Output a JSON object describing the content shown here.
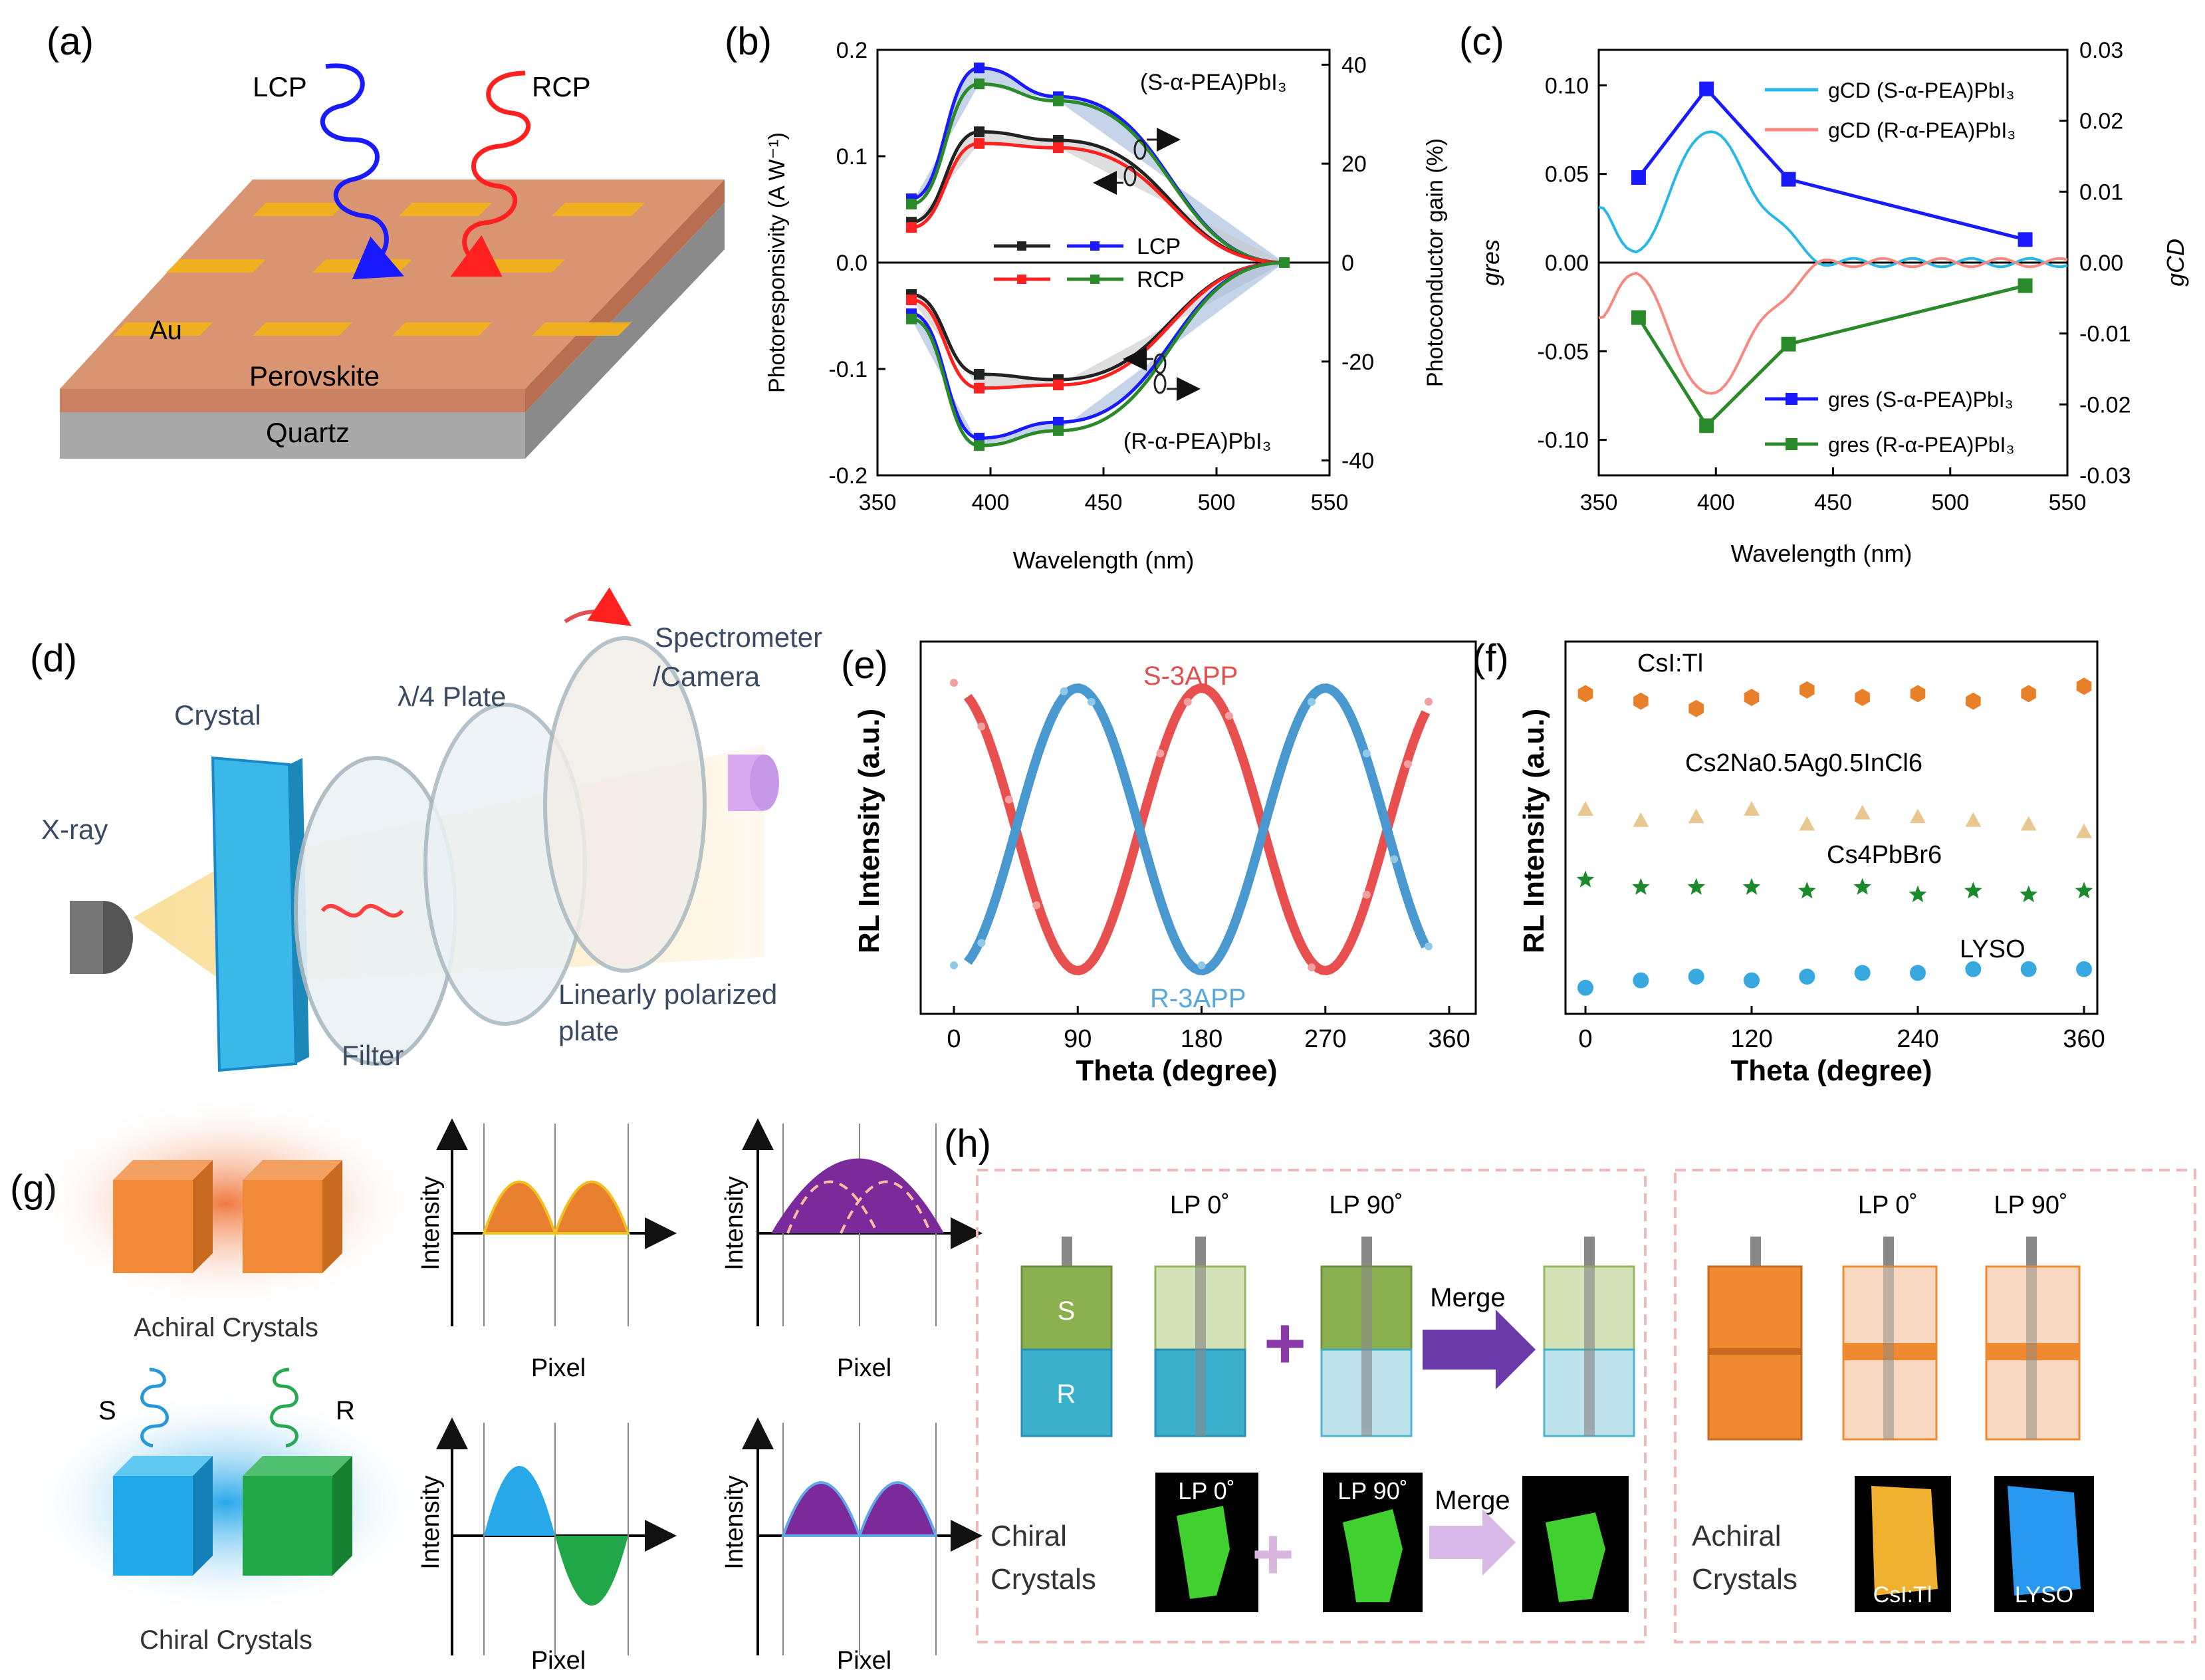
{
  "panel_labels": {
    "a": "(a)",
    "b": "(b)",
    "c": "(c)",
    "d": "(d)",
    "e": "(e)",
    "f": "(f)",
    "g": "(g)",
    "h": "(h)"
  },
  "panel_a": {
    "lcp": "LCP",
    "rcp": "RCP",
    "au": "Au",
    "perovskite": "Perovskite",
    "quartz": "Quartz"
  },
  "panel_d": {
    "xray": "X-ray",
    "crystal": "Crystal",
    "plate": "λ/4 Plate",
    "spectrometer": "Spectrometer",
    "camera": "/Camera",
    "filter": "Filter",
    "lp1": "Linearly polarized",
    "lp2": "plate"
  },
  "panel_g": {
    "achiral": "Achiral Crystals",
    "chiral": "Chiral Crystals",
    "s": "S",
    "r": "R",
    "intensity": "Intensity",
    "pixel": "Pixel"
  },
  "panel_h": {
    "s": "S",
    "r": "R",
    "lp0": "LP 0˚",
    "lp90": "LP 90˚",
    "merge": "Merge",
    "chiral1": "Chiral",
    "chiral2": "Crystals",
    "achiral1": "Achiral",
    "achiral2": "Crystals",
    "csi": "CsI:Tl",
    "lyso": "LYSO"
  },
  "colors": {
    "blue": "#1a1aff",
    "red": "#ff2020",
    "black": "#222222",
    "green": "#2a8a2a",
    "orange": "#e8802a",
    "teal": "#3aa8c8",
    "purple": "#7a2a9a"
  },
  "chart_data": [
    {
      "id": "b",
      "type": "line",
      "xlabel": "Wavelength (nm)",
      "ylabel": "Photoresponsivity (A W⁻¹)",
      "y2label": "Photoconductor gain (%)",
      "xlim": [
        350,
        550
      ],
      "ylim": [
        -0.2,
        0.2
      ],
      "y2lim": [
        -43,
        43
      ],
      "xticks": [
        "350",
        "400",
        "450",
        "500",
        "550"
      ],
      "yticks": [
        "0.2",
        "0.1",
        "0.0",
        "-0.1",
        "-0.2"
      ],
      "y2ticks": [
        "40",
        "20",
        "0",
        "-20",
        "-40"
      ],
      "annotation_top": "(S-α-PEA)PbI₃",
      "annotation_bottom": "(R-α-PEA)PbI₃",
      "legend": [
        "LCP",
        "RCP"
      ],
      "x": [
        365,
        395,
        430,
        530
      ],
      "series": [
        {
          "name": "S LCP",
          "values": [
            0.06,
            0.183,
            0.156,
            0.0
          ]
        },
        {
          "name": "S RCP",
          "values": [
            0.055,
            0.168,
            0.152,
            0.0
          ]
        },
        {
          "name": "S LCP black",
          "values": [
            0.038,
            0.123,
            0.115,
            0.0
          ]
        },
        {
          "name": "S RCP red",
          "values": [
            0.033,
            0.112,
            0.108,
            0.0
          ]
        },
        {
          "name": "R LCP black",
          "values": [
            -0.03,
            -0.105,
            -0.11,
            0.0
          ]
        },
        {
          "name": "R RCP red",
          "values": [
            -0.035,
            -0.118,
            -0.115,
            0.0
          ]
        },
        {
          "name": "R LCP blue",
          "values": [
            -0.048,
            -0.165,
            -0.15,
            0.0
          ]
        },
        {
          "name": "R RCP green",
          "values": [
            -0.053,
            -0.172,
            -0.158,
            0.0
          ]
        }
      ]
    },
    {
      "id": "c",
      "type": "line",
      "xlabel": "Wavelength (nm)",
      "ylabel": "gres",
      "y2label": "gCD",
      "xlim": [
        350,
        550
      ],
      "ylim": [
        -0.12,
        0.12
      ],
      "y2lim": [
        -0.03,
        0.03
      ],
      "xticks": [
        "350",
        "400",
        "450",
        "500",
        "550"
      ],
      "yticks": [
        "0.10",
        "0.05",
        "0.00",
        "-0.05",
        "-0.10"
      ],
      "y2ticks": [
        "0.03",
        "0.02",
        "0.01",
        "0.00",
        "-0.01",
        "-0.02",
        "-0.03"
      ],
      "legend_top": [
        "gCD (S-α-PEA)PbI₃",
        "gCD (R-α-PEA)PbI₃"
      ],
      "legend_bottom": [
        "gres (S-α-PEA)PbI₃",
        "gres (R-α-PEA)PbI₃"
      ],
      "x": [
        367,
        396,
        431,
        532
      ],
      "series": [
        {
          "name": "gres S",
          "values": [
            0.048,
            0.098,
            0.047,
            0.013
          ]
        },
        {
          "name": "gres R",
          "values": [
            -0.031,
            -0.092,
            -0.046,
            -0.013
          ]
        }
      ]
    },
    {
      "id": "e",
      "type": "line",
      "xlabel": "Theta (degree)",
      "ylabel": "RL Intensity (a.u.)",
      "xlim": [
        0,
        360
      ],
      "xticks": [
        "0",
        "90",
        "180",
        "270",
        "360"
      ],
      "series_labels": [
        "S-3APP",
        "R-3APP"
      ]
    },
    {
      "id": "f",
      "type": "scatter",
      "xlabel": "Theta (degree)",
      "ylabel": "RL Intensity (a.u.)",
      "xlim": [
        0,
        360
      ],
      "xticks": [
        "0",
        "120",
        "240",
        "360"
      ],
      "x": [
        0,
        40,
        80,
        120,
        160,
        200,
        240,
        280,
        320,
        360
      ],
      "series": [
        {
          "name": "CsI:Tl",
          "values": [
            0.86,
            0.84,
            0.82,
            0.85,
            0.87,
            0.85,
            0.86,
            0.84,
            0.86,
            0.88
          ]
        },
        {
          "name": "Cs₂Na₀.₅Ag₀.₅InCl₆",
          "values": [
            0.55,
            0.52,
            0.53,
            0.55,
            0.51,
            0.54,
            0.53,
            0.52,
            0.51,
            0.49
          ]
        },
        {
          "name": "Cs₄PbBr₆",
          "values": [
            0.36,
            0.34,
            0.34,
            0.34,
            0.33,
            0.34,
            0.32,
            0.33,
            0.32,
            0.33
          ]
        },
        {
          "name": "LYSO",
          "values": [
            0.07,
            0.09,
            0.1,
            0.09,
            0.1,
            0.11,
            0.11,
            0.12,
            0.12,
            0.12
          ]
        }
      ],
      "labels": [
        "CsI:Tl",
        "Cs2Na0.5Ag0.5InCl6",
        "Cs4PbBr6",
        "LYSO"
      ]
    }
  ]
}
